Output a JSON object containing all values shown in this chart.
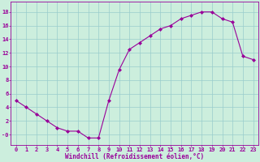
{
  "x": [
    0,
    1,
    2,
    3,
    4,
    5,
    6,
    7,
    8,
    9,
    10,
    11,
    12,
    13,
    14,
    15,
    16,
    17,
    18,
    19,
    20,
    21,
    22,
    23
  ],
  "y": [
    5,
    4,
    3,
    2,
    1,
    0.5,
    0.5,
    -0.5,
    -0.5,
    5,
    9.5,
    12.5,
    13.5,
    14.5,
    15.5,
    16,
    17,
    17.5,
    18,
    18,
    17,
    16.5,
    11.5,
    11
  ],
  "line_color": "#990099",
  "marker": "D",
  "marker_size": 2.0,
  "bg_color": "#cceedd",
  "grid_color": "#99cccc",
  "xlabel": "Windchill (Refroidissement éolien,°C)",
  "ylim": [
    -1.5,
    19.5
  ],
  "xlim": [
    -0.5,
    23.5
  ],
  "xticks": [
    0,
    1,
    2,
    3,
    4,
    5,
    6,
    7,
    8,
    9,
    10,
    11,
    12,
    13,
    14,
    15,
    16,
    17,
    18,
    19,
    20,
    21,
    22,
    23
  ],
  "yticks": [
    0,
    2,
    4,
    6,
    8,
    10,
    12,
    14,
    16,
    18
  ],
  "ytick_labels": [
    "-0",
    "2",
    "4",
    "6",
    "8",
    "10",
    "12",
    "14",
    "16",
    "18"
  ],
  "axis_fontsize": 5.5,
  "tick_fontsize": 5.0,
  "xlabel_fontsize": 5.5
}
